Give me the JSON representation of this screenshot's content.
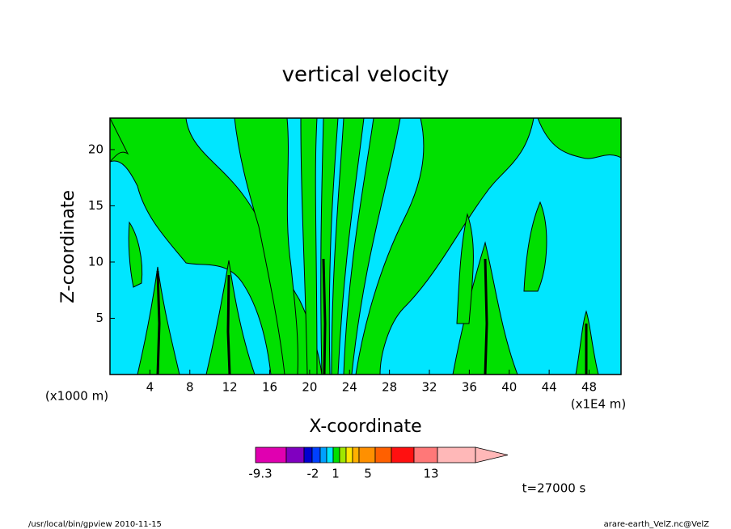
{
  "chart_data": {
    "type": "contour",
    "title": "vertical velocity",
    "x_label": "X-coordinate",
    "y_label": "Z-coordinate",
    "x_unit": "(x1000 m)",
    "x_scale_note": "(x1E4 m)",
    "xlim": [
      0,
      51.2
    ],
    "ylim": [
      0,
      22.8
    ],
    "xticks": [
      4,
      8,
      12,
      16,
      20,
      24,
      28,
      32,
      36,
      40,
      44,
      48
    ],
    "yticks": [
      5,
      10,
      15,
      20
    ],
    "colorbar": {
      "colors": [
        "#e000b0",
        "#8000c0",
        "#0000d0",
        "#0040ff",
        "#00a0ff",
        "#00e6ff",
        "#00e000",
        "#a0e600",
        "#ffe600",
        "#ffb000",
        "#ff9000",
        "#ff6000",
        "#ff1010",
        "#ff7878",
        "#ffb8b8"
      ],
      "labels": [
        -9.3,
        -2,
        1,
        5,
        13
      ]
    },
    "time_label": "t=27000 s",
    "footer_left": "/usr/local/bin/gpview  2010-11-15",
    "footer_right": "arare-earth_VelZ.nc@VelZ"
  }
}
